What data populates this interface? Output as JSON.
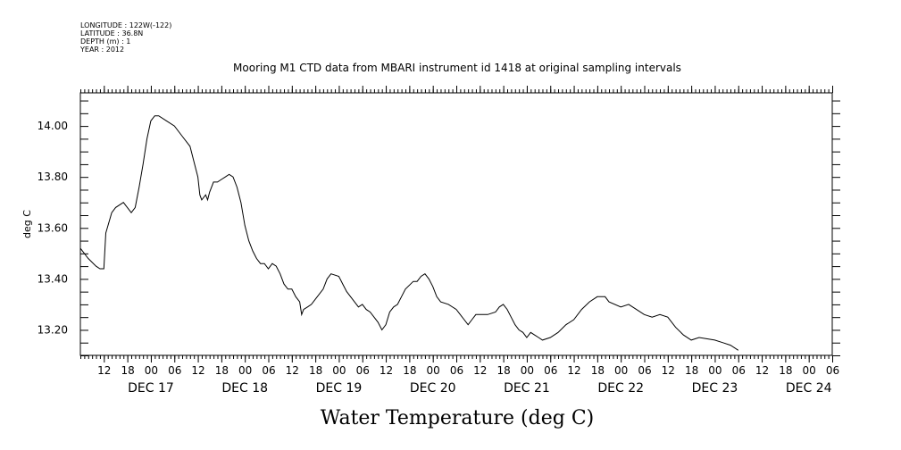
{
  "header": {
    "longitude": "LONGITUDE : 122W(-122)",
    "latitude": "LATITUDE : 36.8N",
    "depth": "DEPTH (m) : 1",
    "year": "YEAR : 2012"
  },
  "chart_data": {
    "type": "line",
    "title": "Mooring M1 CTD data from MBARI instrument id 1418 at original sampling intervals",
    "xlabel": "Water Temperature (deg C)",
    "ylabel": "deg C",
    "xlim": [
      "DEC 16 06:00",
      "DEC 24 06:00"
    ],
    "ylim": [
      13.1,
      14.13
    ],
    "yticks": [
      "13.20",
      "13.40",
      "13.60",
      "13.80",
      "14.00"
    ],
    "xticks": [
      {
        "label": "12",
        "x": "DEC 16 12:00"
      },
      {
        "label": "18",
        "x": "DEC 16 18:00"
      },
      {
        "label": "00",
        "x": "DEC 17 00:00"
      },
      {
        "label": "06",
        "x": "DEC 17 06:00"
      },
      {
        "label": "12",
        "x": "DEC 17 12:00"
      },
      {
        "label": "18",
        "x": "DEC 17 18:00"
      },
      {
        "label": "00",
        "x": "DEC 18 00:00"
      },
      {
        "label": "06",
        "x": "DEC 18 06:00"
      },
      {
        "label": "12",
        "x": "DEC 18 12:00"
      },
      {
        "label": "18",
        "x": "DEC 18 18:00"
      },
      {
        "label": "00",
        "x": "DEC 19 00:00"
      },
      {
        "label": "06",
        "x": "DEC 19 06:00"
      },
      {
        "label": "12",
        "x": "DEC 19 12:00"
      },
      {
        "label": "18",
        "x": "DEC 19 18:00"
      },
      {
        "label": "00",
        "x": "DEC 20 00:00"
      },
      {
        "label": "06",
        "x": "DEC 20 06:00"
      },
      {
        "label": "12",
        "x": "DEC 20 12:00"
      },
      {
        "label": "18",
        "x": "DEC 20 18:00"
      },
      {
        "label": "00",
        "x": "DEC 21 00:00"
      },
      {
        "label": "06",
        "x": "DEC 21 06:00"
      },
      {
        "label": "12",
        "x": "DEC 21 12:00"
      },
      {
        "label": "18",
        "x": "DEC 21 18:00"
      },
      {
        "label": "00",
        "x": "DEC 22 00:00"
      },
      {
        "label": "06",
        "x": "DEC 22 06:00"
      },
      {
        "label": "12",
        "x": "DEC 22 12:00"
      },
      {
        "label": "18",
        "x": "DEC 22 18:00"
      },
      {
        "label": "00",
        "x": "DEC 23 00:00"
      },
      {
        "label": "06",
        "x": "DEC 23 06:00"
      },
      {
        "label": "12",
        "x": "DEC 23 12:00"
      },
      {
        "label": "18",
        "x": "DEC 23 18:00"
      },
      {
        "label": "00",
        "x": "DEC 24 00:00"
      },
      {
        "label": "06",
        "x": "DEC 24 06:00"
      }
    ],
    "day_labels": [
      {
        "label": "DEC 17",
        "x": "DEC 17 00:00"
      },
      {
        "label": "DEC 18",
        "x": "DEC 18 00:00"
      },
      {
        "label": "DEC 19",
        "x": "DEC 19 00:00"
      },
      {
        "label": "DEC 20",
        "x": "DEC 20 00:00"
      },
      {
        "label": "DEC 21",
        "x": "DEC 21 00:00"
      },
      {
        "label": "DEC 22",
        "x": "DEC 22 00:00"
      },
      {
        "label": "DEC 23",
        "x": "DEC 23 00:00"
      },
      {
        "label": "DEC 24",
        "x": "DEC 24 00:00"
      }
    ],
    "grid": false,
    "series": [
      {
        "points": [
          [
            "DEC 16 06:00",
            13.52
          ],
          [
            "DEC 16 08:00",
            13.48
          ],
          [
            "DEC 16 10:00",
            13.45
          ],
          [
            "DEC 16 11:00",
            13.44
          ],
          [
            "DEC 16 12:00",
            13.44
          ],
          [
            "DEC 16 12:30",
            13.58
          ],
          [
            "DEC 16 14:00",
            13.66
          ],
          [
            "DEC 16 15:00",
            13.68
          ],
          [
            "DEC 16 17:00",
            13.7
          ],
          [
            "DEC 16 19:00",
            13.66
          ],
          [
            "DEC 16 20:00",
            13.68
          ],
          [
            "DEC 16 21:00",
            13.76
          ],
          [
            "DEC 16 22:00",
            13.85
          ],
          [
            "DEC 16 23:00",
            13.95
          ],
          [
            "DEC 17 00:00",
            14.02
          ],
          [
            "DEC 17 01:00",
            14.04
          ],
          [
            "DEC 17 02:00",
            14.04
          ],
          [
            "DEC 17 04:00",
            14.02
          ],
          [
            "DEC 17 06:00",
            14.0
          ],
          [
            "DEC 17 08:00",
            13.96
          ],
          [
            "DEC 17 10:00",
            13.92
          ],
          [
            "DEC 17 11:00",
            13.86
          ],
          [
            "DEC 17 12:00",
            13.8
          ],
          [
            "DEC 17 12:30",
            13.73
          ],
          [
            "DEC 17 13:00",
            13.71
          ],
          [
            "DEC 17 14:00",
            13.73
          ],
          [
            "DEC 17 14:30",
            13.71
          ],
          [
            "DEC 17 15:00",
            13.74
          ],
          [
            "DEC 17 16:00",
            13.78
          ],
          [
            "DEC 17 17:00",
            13.78
          ],
          [
            "DEC 17 18:00",
            13.79
          ],
          [
            "DEC 17 19:00",
            13.8
          ],
          [
            "DEC 17 20:00",
            13.81
          ],
          [
            "DEC 17 21:00",
            13.8
          ],
          [
            "DEC 17 22:00",
            13.76
          ],
          [
            "DEC 17 23:00",
            13.7
          ],
          [
            "DEC 18 00:00",
            13.61
          ],
          [
            "DEC 18 01:00",
            13.55
          ],
          [
            "DEC 18 02:00",
            13.51
          ],
          [
            "DEC 18 03:00",
            13.48
          ],
          [
            "DEC 18 04:00",
            13.46
          ],
          [
            "DEC 18 05:00",
            13.46
          ],
          [
            "DEC 18 06:00",
            13.44
          ],
          [
            "DEC 18 07:00",
            13.46
          ],
          [
            "DEC 18 08:00",
            13.45
          ],
          [
            "DEC 18 09:00",
            13.42
          ],
          [
            "DEC 18 10:00",
            13.38
          ],
          [
            "DEC 18 11:00",
            13.36
          ],
          [
            "DEC 18 12:00",
            13.36
          ],
          [
            "DEC 18 13:00",
            13.33
          ],
          [
            "DEC 18 14:00",
            13.31
          ],
          [
            "DEC 18 14:30",
            13.26
          ],
          [
            "DEC 18 15:00",
            13.28
          ],
          [
            "DEC 18 16:00",
            13.29
          ],
          [
            "DEC 18 17:00",
            13.3
          ],
          [
            "DEC 18 18:00",
            13.32
          ],
          [
            "DEC 18 20:00",
            13.36
          ],
          [
            "DEC 18 21:00",
            13.4
          ],
          [
            "DEC 18 22:00",
            13.42
          ],
          [
            "DEC 19 00:00",
            13.41
          ],
          [
            "DEC 19 01:00",
            13.38
          ],
          [
            "DEC 19 02:00",
            13.35
          ],
          [
            "DEC 19 03:00",
            13.33
          ],
          [
            "DEC 19 04:00",
            13.31
          ],
          [
            "DEC 19 05:00",
            13.29
          ],
          [
            "DEC 19 06:00",
            13.3
          ],
          [
            "DEC 19 07:00",
            13.28
          ],
          [
            "DEC 19 08:00",
            13.27
          ],
          [
            "DEC 19 09:00",
            13.25
          ],
          [
            "DEC 19 10:00",
            13.23
          ],
          [
            "DEC 19 11:00",
            13.2
          ],
          [
            "DEC 19 12:00",
            13.22
          ],
          [
            "DEC 19 13:00",
            13.27
          ],
          [
            "DEC 19 14:00",
            13.29
          ],
          [
            "DEC 19 15:00",
            13.3
          ],
          [
            "DEC 19 16:00",
            13.33
          ],
          [
            "DEC 19 17:00",
            13.36
          ],
          [
            "DEC 19 19:00",
            13.39
          ],
          [
            "DEC 19 20:00",
            13.39
          ],
          [
            "DEC 19 21:00",
            13.41
          ],
          [
            "DEC 19 22:00",
            13.42
          ],
          [
            "DEC 19 23:00",
            13.4
          ],
          [
            "DEC 20 00:00",
            13.37
          ],
          [
            "DEC 20 01:00",
            13.33
          ],
          [
            "DEC 20 02:00",
            13.31
          ],
          [
            "DEC 20 04:00",
            13.3
          ],
          [
            "DEC 20 06:00",
            13.28
          ],
          [
            "DEC 20 07:00",
            13.26
          ],
          [
            "DEC 20 08:00",
            13.24
          ],
          [
            "DEC 20 09:00",
            13.22
          ],
          [
            "DEC 20 10:00",
            13.24
          ],
          [
            "DEC 20 11:00",
            13.26
          ],
          [
            "DEC 20 12:00",
            13.26
          ],
          [
            "DEC 20 14:00",
            13.26
          ],
          [
            "DEC 20 16:00",
            13.27
          ],
          [
            "DEC 20 17:00",
            13.29
          ],
          [
            "DEC 20 18:00",
            13.3
          ],
          [
            "DEC 20 19:00",
            13.28
          ],
          [
            "DEC 20 20:00",
            13.25
          ],
          [
            "DEC 20 21:00",
            13.22
          ],
          [
            "DEC 20 22:00",
            13.2
          ],
          [
            "DEC 20 23:00",
            13.19
          ],
          [
            "DEC 21 00:00",
            13.17
          ],
          [
            "DEC 21 01:00",
            13.19
          ],
          [
            "DEC 21 02:00",
            13.18
          ],
          [
            "DEC 21 03:00",
            13.17
          ],
          [
            "DEC 21 04:00",
            13.16
          ],
          [
            "DEC 21 06:00",
            13.17
          ],
          [
            "DEC 21 08:00",
            13.19
          ],
          [
            "DEC 21 10:00",
            13.22
          ],
          [
            "DEC 21 12:00",
            13.24
          ],
          [
            "DEC 21 14:00",
            13.28
          ],
          [
            "DEC 21 16:00",
            13.31
          ],
          [
            "DEC 21 18:00",
            13.33
          ],
          [
            "DEC 21 20:00",
            13.33
          ],
          [
            "DEC 21 21:00",
            13.31
          ],
          [
            "DEC 22 00:00",
            13.29
          ],
          [
            "DEC 22 02:00",
            13.3
          ],
          [
            "DEC 22 04:00",
            13.28
          ],
          [
            "DEC 22 06:00",
            13.26
          ],
          [
            "DEC 22 08:00",
            13.25
          ],
          [
            "DEC 22 10:00",
            13.26
          ],
          [
            "DEC 22 12:00",
            13.25
          ],
          [
            "DEC 22 14:00",
            13.21
          ],
          [
            "DEC 22 16:00",
            13.18
          ],
          [
            "DEC 22 18:00",
            13.16
          ],
          [
            "DEC 22 20:00",
            13.17
          ],
          [
            "DEC 23 00:00",
            13.16
          ],
          [
            "DEC 23 02:00",
            13.15
          ],
          [
            "DEC 23 04:00",
            13.14
          ],
          [
            "DEC 23 06:00",
            13.12
          ]
        ]
      }
    ]
  }
}
